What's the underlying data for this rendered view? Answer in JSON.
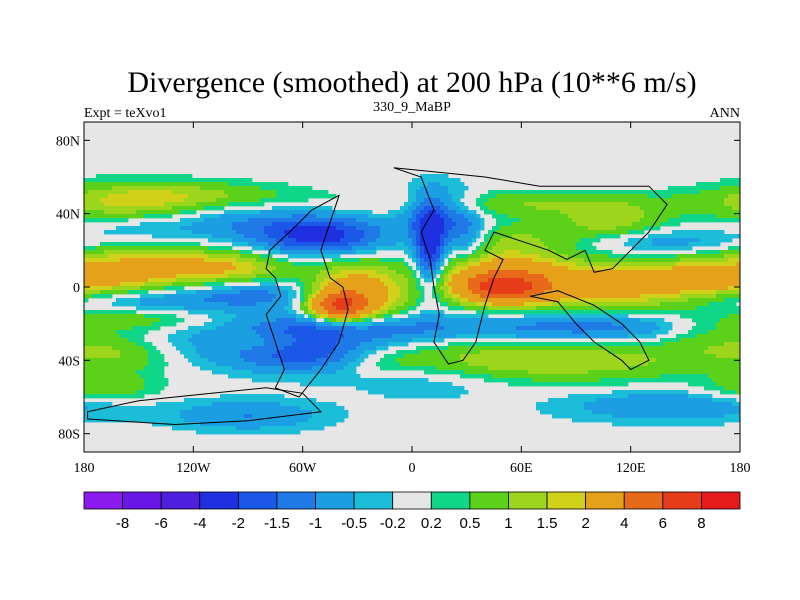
{
  "chart_data": {
    "type": "heatmap",
    "title": "Divergence (smoothed) at 200 hPa (10**6 m/s)",
    "subtitle_left": "Expt = teXvo1",
    "subtitle_center": "330_9_MaBP",
    "subtitle_right": "ANN",
    "x_ticks": [
      {
        "value": -180,
        "label": "180"
      },
      {
        "value": -120,
        "label": "120W"
      },
      {
        "value": -60,
        "label": "60W"
      },
      {
        "value": 0,
        "label": "0"
      },
      {
        "value": 60,
        "label": "60E"
      },
      {
        "value": 120,
        "label": "120E"
      },
      {
        "value": 180,
        "label": "180"
      }
    ],
    "y_ticks": [
      {
        "value": 80,
        "label": "80N"
      },
      {
        "value": 40,
        "label": "40N"
      },
      {
        "value": 0,
        "label": "0"
      },
      {
        "value": -40,
        "label": "40S"
      },
      {
        "value": -80,
        "label": "80S"
      }
    ],
    "xlim": [
      -180,
      180
    ],
    "ylim": [
      -90,
      90
    ],
    "colorbar": {
      "levels": [
        "-8",
        "-6",
        "-4",
        "-2",
        "-1.5",
        "-1",
        "-0.5",
        "-0.2",
        "0.2",
        "0.5",
        "1",
        "1.5",
        "2",
        "4",
        "6",
        "8"
      ],
      "colors": [
        "#8a1aed",
        "#6a16e6",
        "#4f1fe0",
        "#1f30e0",
        "#1c58e8",
        "#1f7ae8",
        "#1c9ee3",
        "#1cbdd9",
        "#e6e6e6",
        "#10d68a",
        "#5cd11a",
        "#9bd61c",
        "#d1d11a",
        "#e6a11a",
        "#e66a1a",
        "#e63c1a",
        "#e61a1a"
      ]
    },
    "background_color": "#e6e6e6",
    "fields": [
      {
        "lon": -155,
        "lat": 45,
        "slon": 30,
        "slat": 8,
        "value": 1.2
      },
      {
        "lon": -120,
        "lat": 50,
        "slon": 40,
        "slat": 5,
        "value": 1.0
      },
      {
        "lon": -150,
        "lat": 33,
        "slon": 20,
        "slat": 5,
        "value": -0.6
      },
      {
        "lon": -100,
        "lat": 35,
        "slon": 25,
        "slat": 7,
        "value": -0.8
      },
      {
        "lon": -50,
        "lat": 28,
        "slon": 25,
        "slat": 8,
        "value": -2.4
      },
      {
        "lon": -150,
        "lat": 12,
        "slon": 35,
        "slat": 7,
        "value": 2.0
      },
      {
        "lon": -100,
        "lat": 10,
        "slon": 25,
        "slat": 6,
        "value": 1.5
      },
      {
        "lon": -170,
        "lat": 3,
        "slon": 25,
        "slat": 5,
        "value": 1.2
      },
      {
        "lon": -85,
        "lat": -4,
        "slon": 25,
        "slat": 6,
        "value": -1.2
      },
      {
        "lon": -140,
        "lat": -8,
        "slon": 30,
        "slat": 5,
        "value": -0.8
      },
      {
        "lon": -30,
        "lat": -4,
        "slon": 18,
        "slat": 12,
        "value": 3.0
      },
      {
        "lon": -40,
        "lat": -10,
        "slon": 10,
        "slat": 5,
        "value": 5.0
      },
      {
        "lon": -40,
        "lat": -22,
        "slon": 35,
        "slat": 6,
        "value": -1.6
      },
      {
        "lon": -55,
        "lat": -35,
        "slon": 30,
        "slat": 8,
        "value": -2.2
      },
      {
        "lon": -80,
        "lat": -30,
        "slon": 30,
        "slat": 5,
        "value": 1.0
      },
      {
        "lon": -120,
        "lat": -30,
        "slon": 30,
        "slat": 8,
        "value": -1.0
      },
      {
        "lon": -160,
        "lat": -35,
        "slon": 25,
        "slat": 8,
        "value": 1.2
      },
      {
        "lon": -150,
        "lat": -18,
        "slon": 30,
        "slat": 5,
        "value": 1.0
      },
      {
        "lon": -20,
        "lat": -40,
        "slon": 20,
        "slat": 6,
        "value": 0.8
      },
      {
        "lon": 10,
        "lat": 20,
        "slon": 6,
        "slat": 16,
        "value": -2.5
      },
      {
        "lon": 15,
        "lat": 40,
        "slon": 15,
        "slat": 10,
        "value": -1.5
      },
      {
        "lon": 30,
        "lat": 25,
        "slon": 8,
        "slat": 10,
        "value": -1.0
      },
      {
        "lon": 50,
        "lat": 5,
        "slon": 25,
        "slat": 10,
        "value": 3.2
      },
      {
        "lon": 50,
        "lat": 0,
        "slon": 15,
        "slat": 5,
        "value": 4.5
      },
      {
        "lon": 110,
        "lat": 0,
        "slon": 35,
        "slat": 9,
        "value": 2.2
      },
      {
        "lon": 150,
        "lat": 5,
        "slon": 30,
        "slat": 6,
        "value": 1.4
      },
      {
        "lon": 60,
        "lat": 27,
        "slon": 25,
        "slat": 6,
        "value": 0.8
      },
      {
        "lon": 110,
        "lat": 35,
        "slon": 20,
        "slat": 6,
        "value": 1.2
      },
      {
        "lon": 140,
        "lat": 25,
        "slon": 30,
        "slat": 5,
        "value": -0.8
      },
      {
        "lon": 70,
        "lat": 45,
        "slon": 60,
        "slat": 5,
        "value": 1.0
      },
      {
        "lon": 90,
        "lat": -22,
        "slon": 60,
        "slat": 6,
        "value": -1.4
      },
      {
        "lon": 40,
        "lat": -40,
        "slon": 40,
        "slat": 8,
        "value": 1.2
      },
      {
        "lon": 110,
        "lat": -40,
        "slon": 40,
        "slat": 8,
        "value": 1.0
      },
      {
        "lon": 160,
        "lat": -25,
        "slon": 20,
        "slat": 8,
        "value": 0.8
      },
      {
        "lon": 10,
        "lat": -50,
        "slon": 30,
        "slat": 8,
        "value": -0.6
      },
      {
        "lon": 140,
        "lat": -65,
        "slon": 40,
        "slat": 6,
        "value": -1.0
      },
      {
        "lon": -90,
        "lat": -70,
        "slon": 30,
        "slat": 6,
        "value": -1.0
      },
      {
        "lon": -170,
        "lat": -55,
        "slon": 20,
        "slat": 5,
        "value": 1.0
      }
    ]
  }
}
